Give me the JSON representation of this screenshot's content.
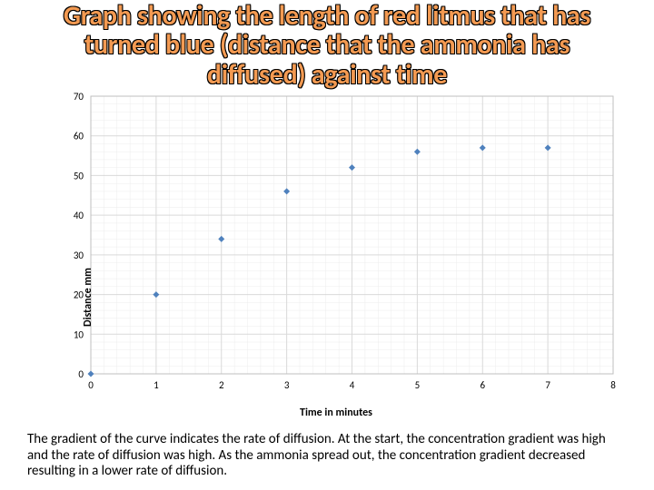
{
  "title_line1": "Graph showing the length of red litmus that has",
  "title_line2": "turned blue (distance that the ammonia has",
  "title_line3": "diffused) against time",
  "caption": "The gradient of the curve indicates the rate of diffusion. At the start, the concentration gradient was high and the rate of diffusion was high. As the ammonia spread out, the concentration gradient decreased resulting in a lower rate of diffusion.",
  "chart": {
    "type": "scatter",
    "xlabel": "Time in minutes",
    "ylabel": "Distance mm",
    "xlim": [
      0,
      8
    ],
    "ylim": [
      0,
      70
    ],
    "xtick_step": 1,
    "ytick_step": 10,
    "xticks": [
      0,
      1,
      2,
      3,
      4,
      5,
      6,
      7,
      8
    ],
    "yticks": [
      0,
      10,
      20,
      30,
      40,
      50,
      60,
      70
    ],
    "minor_x_divisions": 5,
    "minor_y_divisions": 5,
    "plot_bg": "#ffffff",
    "major_grid_color": "#d9d9d9",
    "minor_grid_color": "#ececec",
    "border_color": "#bfbfbf",
    "tick_label_fontsize": 11,
    "tick_label_color": "#000000",
    "marker_color": "#4f81bd",
    "marker_size": 7,
    "marker_shape": "diamond",
    "points": [
      {
        "x": 0,
        "y": 0
      },
      {
        "x": 1,
        "y": 20
      },
      {
        "x": 2,
        "y": 34
      },
      {
        "x": 3,
        "y": 46
      },
      {
        "x": 4,
        "y": 52
      },
      {
        "x": 5,
        "y": 56
      },
      {
        "x": 6,
        "y": 57
      },
      {
        "x": 7,
        "y": 57
      }
    ]
  }
}
